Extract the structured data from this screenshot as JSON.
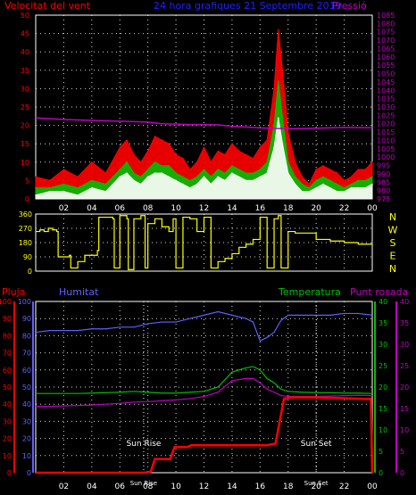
{
  "header": {
    "wind_label": "Velocitat del vent",
    "title": "24 hora grafiques  21 Septembre 2019",
    "pressure_label": "Pressió"
  },
  "colors": {
    "background": "#000000",
    "wind": "#ff0000",
    "gust": "#ff0000",
    "avg_wind": "#00c000",
    "min_wind": "#ffffff",
    "pressure": "#c000c0",
    "direction": "#ffff00",
    "humidity": "#6060ff",
    "temperature": "#00c000",
    "dewpoint": "#c000c0",
    "rain": "#ff0000",
    "grid": "#ffffff",
    "sun_line": "#ffffff",
    "axis_text": "#ffffff"
  },
  "x_ticks": [
    "02",
    "04",
    "06",
    "08",
    "10",
    "12",
    "14",
    "16",
    "18",
    "20",
    "22",
    "00"
  ],
  "chart_data": [
    {
      "type": "line",
      "name": "wind_pressure",
      "x_hours": [
        0,
        1,
        2,
        3,
        4,
        5,
        6,
        6.5,
        7,
        7.5,
        8,
        8.5,
        9,
        9.5,
        10,
        10.5,
        11,
        11.5,
        12,
        12.5,
        13,
        13.5,
        14,
        14.5,
        15,
        15.5,
        16,
        16.5,
        17,
        17.3,
        17.6,
        18,
        18.5,
        19,
        19.5,
        20,
        20.5,
        21,
        21.5,
        22,
        22.5,
        23,
        23.5,
        24
      ],
      "series": [
        {
          "key": "gust",
          "values": [
            6,
            5,
            8,
            6,
            10,
            7,
            14,
            16,
            12,
            10,
            13,
            17,
            16,
            15,
            12,
            11,
            8,
            10,
            14,
            10,
            13,
            12,
            15,
            13,
            12,
            11,
            14,
            16,
            30,
            46,
            35,
            18,
            10,
            6,
            4,
            8,
            9,
            8,
            7,
            5,
            6,
            8,
            8,
            10
          ]
        },
        {
          "key": "avg_wind",
          "values": [
            3,
            3,
            4,
            3,
            5,
            4,
            8,
            10,
            7,
            6,
            8,
            10,
            9,
            9,
            7,
            6,
            5,
            6,
            8,
            6,
            8,
            7,
            9,
            8,
            7,
            7,
            8,
            10,
            20,
            32,
            22,
            10,
            6,
            4,
            3,
            5,
            6,
            5,
            4,
            3,
            4,
            5,
            5,
            6
          ]
        },
        {
          "key": "min_wind",
          "values": [
            1,
            2,
            2,
            1,
            3,
            2,
            6,
            7,
            5,
            4,
            6,
            7,
            7,
            6,
            5,
            4,
            3,
            4,
            6,
            4,
            6,
            5,
            7,
            6,
            5,
            5,
            6,
            7,
            14,
            22,
            15,
            7,
            4,
            2,
            2,
            3,
            4,
            3,
            2,
            2,
            3,
            3,
            3,
            4
          ]
        }
      ],
      "pressure": {
        "x_hours": [
          0,
          2,
          4,
          6,
          8,
          9,
          10,
          11,
          12,
          13,
          14,
          16,
          18,
          20,
          22,
          24
        ],
        "values": [
          1023.5,
          1022.5,
          1022.0,
          1021.5,
          1021.0,
          1020.0,
          1019.8,
          1019.5,
          1019.5,
          1019.3,
          1018.5,
          1017.5,
          1017.0,
          1017.3,
          1017.8,
          1017.6
        ]
      },
      "ylim_left": [
        0,
        50
      ],
      "yticks_left": [
        0,
        5,
        10,
        15,
        20,
        25,
        30,
        35,
        40,
        45,
        50
      ],
      "ylim_right": [
        975,
        1085
      ],
      "yticks_right": [
        975,
        980,
        985,
        990,
        995,
        1000,
        1005,
        1010,
        1015,
        1020,
        1025,
        1030,
        1035,
        1040,
        1045,
        1050,
        1055,
        1060,
        1065,
        1070,
        1075,
        1080,
        1085
      ]
    },
    {
      "type": "line",
      "name": "wind_direction",
      "x_hours": [
        0,
        0.3,
        0.6,
        0.9,
        1.2,
        1.5,
        1.6,
        2.4,
        2.5,
        3.0,
        3.5,
        4.4,
        4.5,
        5.5,
        5.6,
        6.0,
        6.5,
        6.6,
        7.0,
        7.5,
        7.8,
        8.0,
        8.5,
        9.0,
        9.5,
        9.8,
        10.0,
        10.5,
        11.0,
        11.5,
        12.0,
        12.5,
        13.0,
        13.5,
        14.0,
        14.5,
        15.0,
        15.5,
        16.0,
        16.5,
        17.0,
        17.3,
        17.5,
        18.0,
        18.5,
        19.0,
        20.0,
        21.0,
        22.0,
        23.0,
        24.0
      ],
      "values": [
        250,
        260,
        250,
        270,
        260,
        250,
        90,
        100,
        20,
        60,
        100,
        130,
        340,
        330,
        20,
        350,
        330,
        10,
        330,
        350,
        20,
        300,
        330,
        280,
        250,
        330,
        20,
        340,
        330,
        250,
        340,
        20,
        60,
        80,
        110,
        150,
        170,
        200,
        340,
        20,
        330,
        350,
        20,
        250,
        240,
        240,
        200,
        190,
        180,
        170,
        175
      ],
      "yticks": [
        0,
        90,
        180,
        270,
        360
      ],
      "ylim": [
        0,
        360
      ],
      "direction_labels": [
        "N",
        "W",
        "S",
        "E",
        "N"
      ]
    },
    {
      "type": "line",
      "name": "humidity_temperature_rain",
      "labels": {
        "rain": "Pluja",
        "humidity": "Humitat",
        "temperature": "Temperatura",
        "dewpoint": "Punt rosada",
        "sunrise": "Sun Rise",
        "sunset": "Sun Set"
      },
      "x_hours": [
        0,
        1,
        2,
        3,
        4,
        5,
        6,
        7,
        8,
        9,
        10,
        11,
        12,
        13,
        14,
        15,
        15.5,
        16,
        16.5,
        17,
        17.5,
        18,
        19,
        20,
        21,
        22,
        23,
        24
      ],
      "series": [
        {
          "key": "humidity",
          "axis": "left",
          "values": [
            82,
            83,
            83,
            83,
            84,
            84,
            85,
            85,
            87,
            88,
            88,
            90,
            92,
            94,
            92,
            90,
            88,
            77,
            79,
            82,
            89,
            92,
            92,
            92,
            92,
            93,
            93,
            92
          ]
        },
        {
          "key": "temperature",
          "axis": "right",
          "values": [
            18.5,
            18.5,
            18.5,
            18.5,
            18.6,
            18.7,
            18.8,
            19.0,
            18.8,
            18.6,
            18.6,
            18.8,
            19.0,
            20.0,
            23.5,
            24.5,
            24.8,
            24.0,
            22.0,
            21.0,
            19.5,
            19.0,
            18.8,
            18.7,
            18.7,
            18.6,
            18.6,
            18.5
          ]
        },
        {
          "key": "dewpoint",
          "axis": "right",
          "values": [
            15.5,
            15.5,
            15.6,
            15.7,
            15.8,
            16.0,
            16.2,
            16.5,
            16.6,
            16.8,
            17.0,
            17.3,
            17.8,
            18.8,
            21.5,
            22.0,
            22.0,
            21.0,
            19.5,
            18.8,
            18.0,
            17.8,
            17.8,
            17.8,
            17.9,
            18.0,
            18.1,
            18.0
          ]
        }
      ],
      "rain": {
        "x_hours": [
          0,
          7.7,
          8.2,
          8.5,
          9.6,
          9.9,
          10.8,
          11.1,
          16.5,
          17.1,
          17.7,
          18.2,
          20.0,
          23.9,
          24.0
        ],
        "values": [
          0,
          0,
          0.5,
          8,
          8,
          15,
          15,
          16,
          16,
          17,
          43,
          44,
          44,
          43,
          0
        ]
      },
      "sunrise_hour": 7.7,
      "sunset_hour": 20.0,
      "ylim_left": [
        0,
        100
      ],
      "yticks_left": [
        0,
        10,
        20,
        30,
        40,
        50,
        60,
        70,
        80,
        90,
        100
      ],
      "ylim_right": [
        0,
        40
      ],
      "yticks_right": [
        0,
        5,
        10,
        15,
        20,
        25,
        30,
        35,
        40
      ]
    }
  ]
}
